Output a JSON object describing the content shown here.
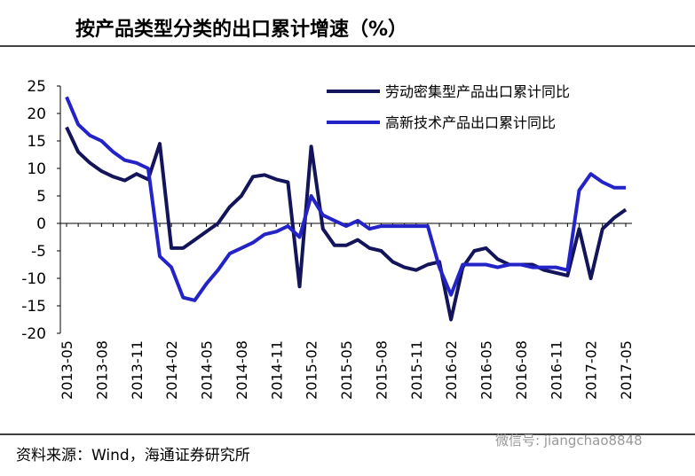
{
  "chart_data": {
    "type": "line",
    "title": "按产品类型分类的出口累计增速（%）",
    "source": "资料来源：Wind，海通证券研究所",
    "watermark": "微信号: jiangchao8848",
    "categories": [
      "2013-05",
      null,
      null,
      "2013-08",
      null,
      null,
      "2013-11",
      null,
      null,
      "2014-02",
      null,
      null,
      "2014-05",
      null,
      null,
      "2014-08",
      null,
      null,
      "2014-11",
      null,
      null,
      "2015-02",
      null,
      null,
      "2015-05",
      null,
      null,
      "2015-08",
      null,
      null,
      "2015-11",
      null,
      null,
      "2016-02",
      null,
      null,
      "2016-05",
      null,
      null,
      "2016-08",
      null,
      null,
      "2016-11",
      null,
      null,
      "2017-02",
      null,
      null,
      "2017-05"
    ],
    "series": [
      {
        "name": "劳动密集型产品出口累计同比",
        "color": "#14145a",
        "values": [
          17.5,
          13,
          11,
          9.5,
          8.5,
          7.8,
          9,
          8,
          14.5,
          -4.5,
          -4.5,
          -3,
          -1.5,
          0,
          3,
          5,
          8.5,
          8.8,
          8,
          7.5,
          -11.5,
          14,
          -1,
          -4,
          -4,
          -3,
          -4.5,
          -5,
          -7,
          -8,
          -8.5,
          -7.5,
          -7,
          -17.5,
          -8,
          -5,
          -4.5,
          -6.5,
          -7.5,
          -7.5,
          -7.5,
          -8.5,
          -9,
          -9.5,
          -1,
          -10,
          -1,
          1,
          2.5
        ]
      },
      {
        "name": "高新技术产品出口累计同比",
        "color": "#2323c8",
        "values": [
          23,
          18,
          16,
          15,
          13,
          11.5,
          11,
          10,
          -6,
          -8,
          -13.5,
          -14,
          -11,
          -8.5,
          -5.5,
          -4.5,
          -3.5,
          -2,
          -1.5,
          -0.5,
          -2.5,
          5,
          1.5,
          0.5,
          -0.5,
          0.5,
          -1,
          -0.5,
          -0.5,
          -0.5,
          -0.5,
          -0.5,
          -8,
          -13,
          -7.5,
          -7.5,
          -7.5,
          -8,
          -7.5,
          -7.5,
          -8,
          -8,
          -8,
          -8.5,
          6,
          9,
          7.5,
          6.5,
          6.5
        ]
      }
    ],
    "ylim": [
      -20,
      25
    ],
    "yticks": [
      -20,
      -15,
      -10,
      -5,
      0,
      5,
      10,
      15,
      20,
      25
    ],
    "grid": false
  }
}
